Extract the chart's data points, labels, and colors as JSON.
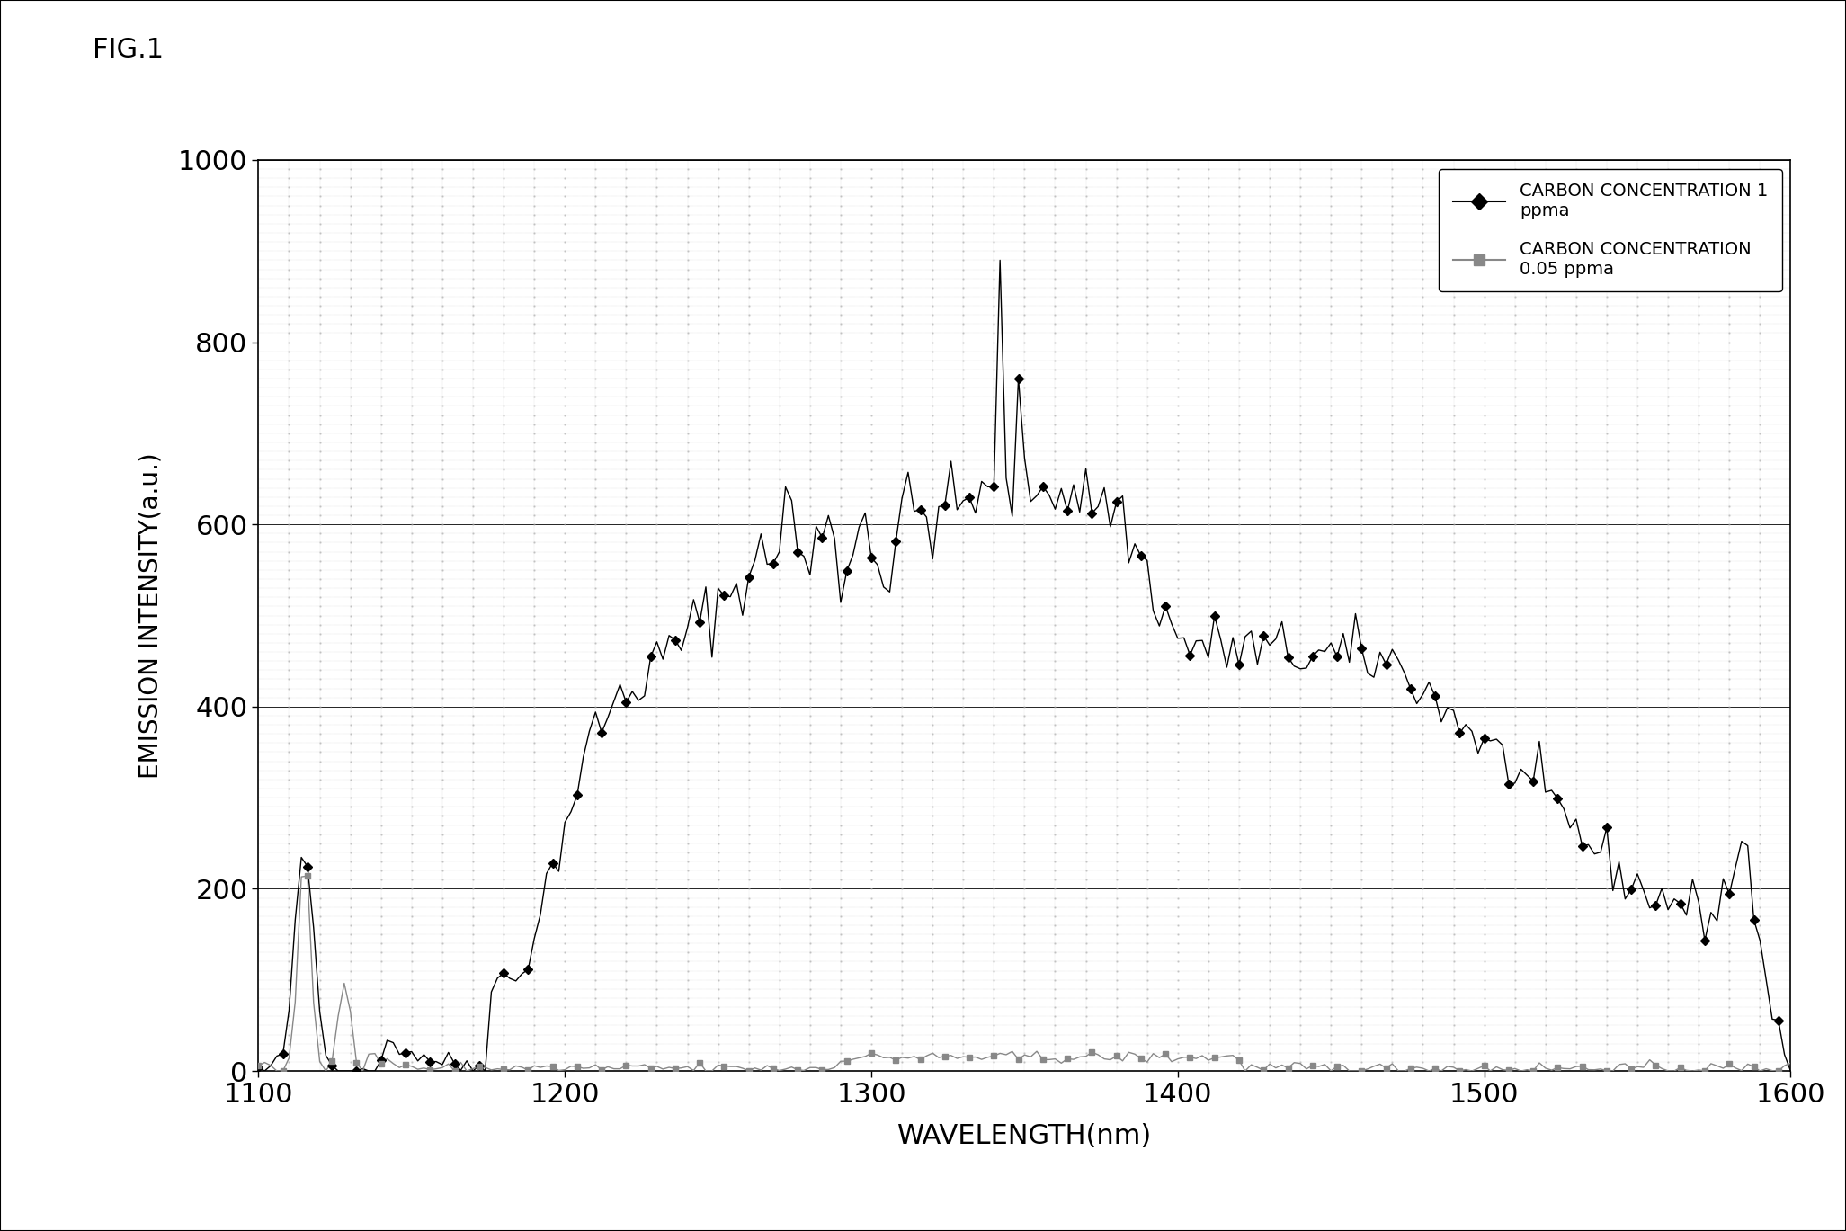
{
  "title": "FIG.1",
  "xlabel": "WAVELENGTH(nm)",
  "ylabel": "EMISSION INTENSITY(a.u.)",
  "xlim": [
    1100,
    1600
  ],
  "ylim": [
    0,
    1000
  ],
  "xticks": [
    1100,
    1200,
    1300,
    1400,
    1500,
    1600
  ],
  "yticks": [
    0,
    200,
    400,
    600,
    800,
    1000
  ],
  "background_color": "#ffffff",
  "plot_bg_color": "#ffffff",
  "legend1_label": "CARBON CONCENTRATION 1\nppma",
  "legend2_label": "CARBON CONCENTRATION\n0.05 ppma",
  "line1_color": "#000000",
  "line2_color": "#888888",
  "figsize": [
    20.53,
    13.69
  ],
  "dpi": 100
}
